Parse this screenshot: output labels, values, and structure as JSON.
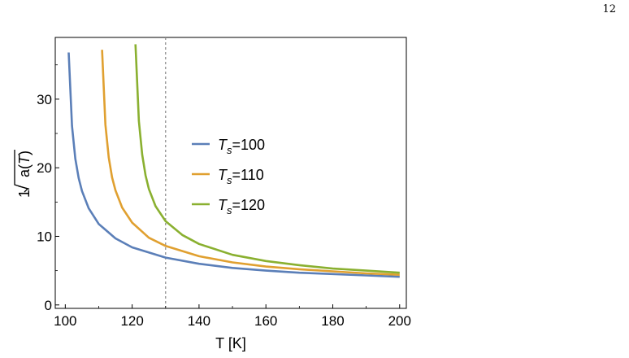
{
  "page_number": "12",
  "chart_data": {
    "type": "line",
    "xlabel": "T [K]",
    "ylabel": "1/√a(T)",
    "xlim": [
      97,
      202
    ],
    "ylim": [
      -0.5,
      39
    ],
    "xticks": [
      100,
      120,
      140,
      160,
      180,
      200
    ],
    "yticks": [
      0,
      10,
      20,
      30
    ],
    "reference_line": {
      "x": 130,
      "style": "dashed",
      "color": "#888888"
    },
    "legend_placement": "center-right",
    "series": [
      {
        "name": "Ts=100",
        "label_main": "T",
        "label_sub": "s",
        "label_rest": "=100",
        "color": "#5b7fb8",
        "x": [
          101,
          102,
          103,
          104,
          105,
          107,
          110,
          115,
          120,
          130,
          140,
          150,
          160,
          170,
          180,
          190,
          200
        ],
        "y": [
          36.8,
          26.1,
          21.3,
          18.5,
          16.6,
          14.1,
          11.8,
          9.7,
          8.4,
          6.9,
          6.0,
          5.4,
          5.0,
          4.7,
          4.5,
          4.3,
          4.1
        ]
      },
      {
        "name": "Ts=110",
        "label_main": "T",
        "label_sub": "s",
        "label_rest": "=110",
        "color": "#e0a030",
        "x": [
          111,
          112,
          113,
          114,
          115,
          117,
          120,
          125,
          130,
          140,
          150,
          160,
          170,
          180,
          190,
          200
        ],
        "y": [
          37.2,
          26.3,
          21.5,
          18.6,
          16.7,
          14.2,
          12.0,
          9.8,
          8.6,
          7.1,
          6.2,
          5.6,
          5.2,
          4.9,
          4.6,
          4.4
        ]
      },
      {
        "name": "Ts=120",
        "label_main": "T",
        "label_sub": "s",
        "label_rest": "=120",
        "color": "#8ab030",
        "x": [
          121,
          122,
          123,
          124,
          125,
          127,
          130,
          135,
          140,
          150,
          160,
          170,
          180,
          190,
          200
        ],
        "y": [
          38.0,
          26.8,
          21.9,
          18.9,
          16.9,
          14.4,
          12.2,
          10.2,
          8.9,
          7.3,
          6.4,
          5.8,
          5.3,
          5.0,
          4.7
        ]
      }
    ]
  }
}
